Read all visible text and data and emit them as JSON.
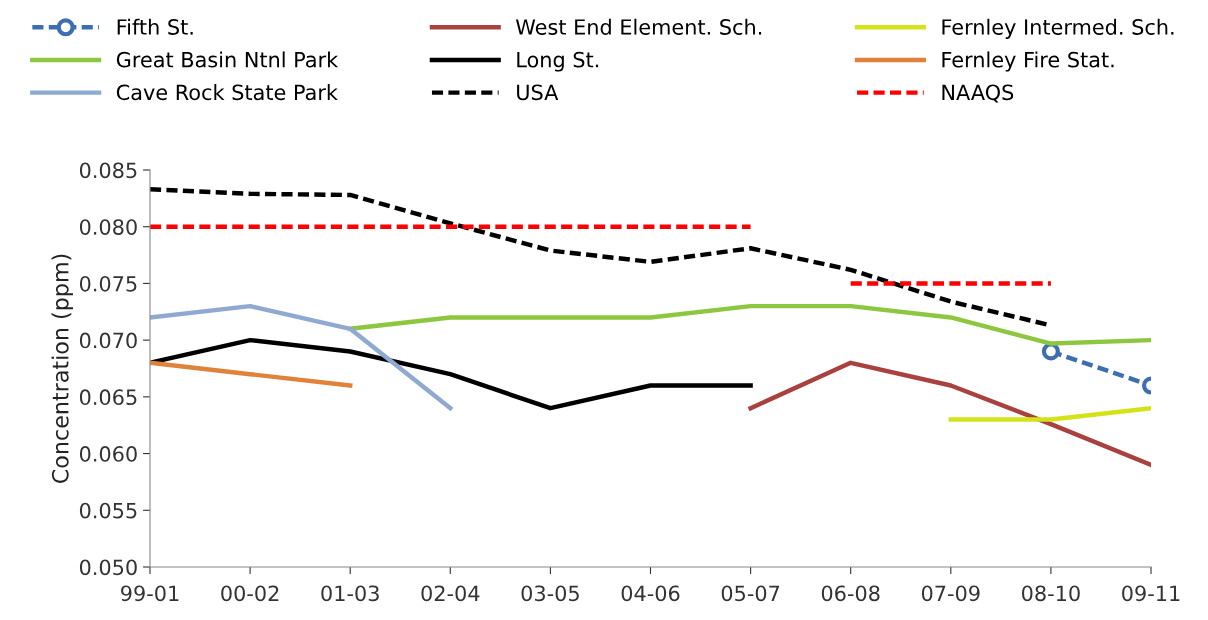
{
  "chart_data": {
    "type": "line",
    "ylabel": "Concentration (ppm)",
    "categories": [
      "99-01",
      "00-02",
      "01-03",
      "02-04",
      "03-05",
      "04-06",
      "05-07",
      "06-08",
      "07-09",
      "08-10",
      "09-11"
    ],
    "ylim": [
      0.05,
      0.085
    ],
    "yticks": [
      {
        "value": 0.05,
        "label": "0.050"
      },
      {
        "value": 0.055,
        "label": "0.055"
      },
      {
        "value": 0.06,
        "label": "0.060"
      },
      {
        "value": 0.065,
        "label": "0.065"
      },
      {
        "value": 0.07,
        "label": "0.070"
      },
      {
        "value": 0.075,
        "label": "0.075"
      },
      {
        "value": 0.08,
        "label": "0.080"
      },
      {
        "value": 0.085,
        "label": "0.085"
      }
    ],
    "grid": false,
    "legend": "top",
    "series": [
      {
        "name": "Fifth St.",
        "color": "#3d6eb0",
        "marker": "circle",
        "line_style": "dashed",
        "values": [
          null,
          null,
          null,
          null,
          null,
          null,
          null,
          null,
          null,
          0.069,
          0.066
        ]
      },
      {
        "name": "West End Element. Sch.",
        "color": "#a9413f",
        "values": [
          null,
          null,
          null,
          null,
          null,
          null,
          0.064,
          0.068,
          0.066,
          0.0626,
          0.059
        ]
      },
      {
        "name": "Fernley Intermed. Sch.",
        "color": "#d4e21a",
        "values": [
          null,
          null,
          null,
          null,
          null,
          null,
          null,
          null,
          0.063,
          0.063,
          0.064
        ]
      },
      {
        "name": "Great Basin Ntnl Park",
        "color": "#8dc63f",
        "values": [
          null,
          null,
          0.071,
          0.072,
          0.072,
          0.072,
          0.073,
          0.073,
          0.072,
          0.0697,
          0.07
        ]
      },
      {
        "name": "Long St.",
        "color": "#000000",
        "values": [
          0.068,
          0.07,
          0.069,
          0.067,
          0.064,
          0.066,
          0.066,
          null,
          null,
          null,
          null
        ]
      },
      {
        "name": "Fernley Fire Stat.",
        "color": "#e0823a",
        "values": [
          0.068,
          0.067,
          0.066,
          null,
          null,
          null,
          null,
          null,
          null,
          null,
          null
        ]
      },
      {
        "name": "Cave Rock State Park",
        "color": "#8fa9d0",
        "values": [
          0.072,
          0.073,
          0.071,
          0.064,
          null,
          null,
          null,
          null,
          null,
          null,
          null
        ]
      },
      {
        "name": "USA",
        "color": "#000000",
        "line_style": "dashed",
        "values": [
          0.0833,
          0.0829,
          0.0828,
          0.0803,
          0.0779,
          0.0769,
          0.0781,
          0.0762,
          0.0734,
          0.0713,
          null
        ]
      },
      {
        "name": "NAAQS",
        "color": "#ff0000",
        "line_style": "dashed",
        "values": [
          0.08,
          0.08,
          0.08,
          0.08,
          0.08,
          0.08,
          0.08,
          null,
          null,
          null,
          null
        ]
      },
      {
        "color": "#ff0000",
        "line_style": "dashed",
        "values": [
          null,
          null,
          null,
          null,
          null,
          null,
          null,
          0.075,
          0.075,
          0.075,
          null
        ]
      }
    ]
  }
}
